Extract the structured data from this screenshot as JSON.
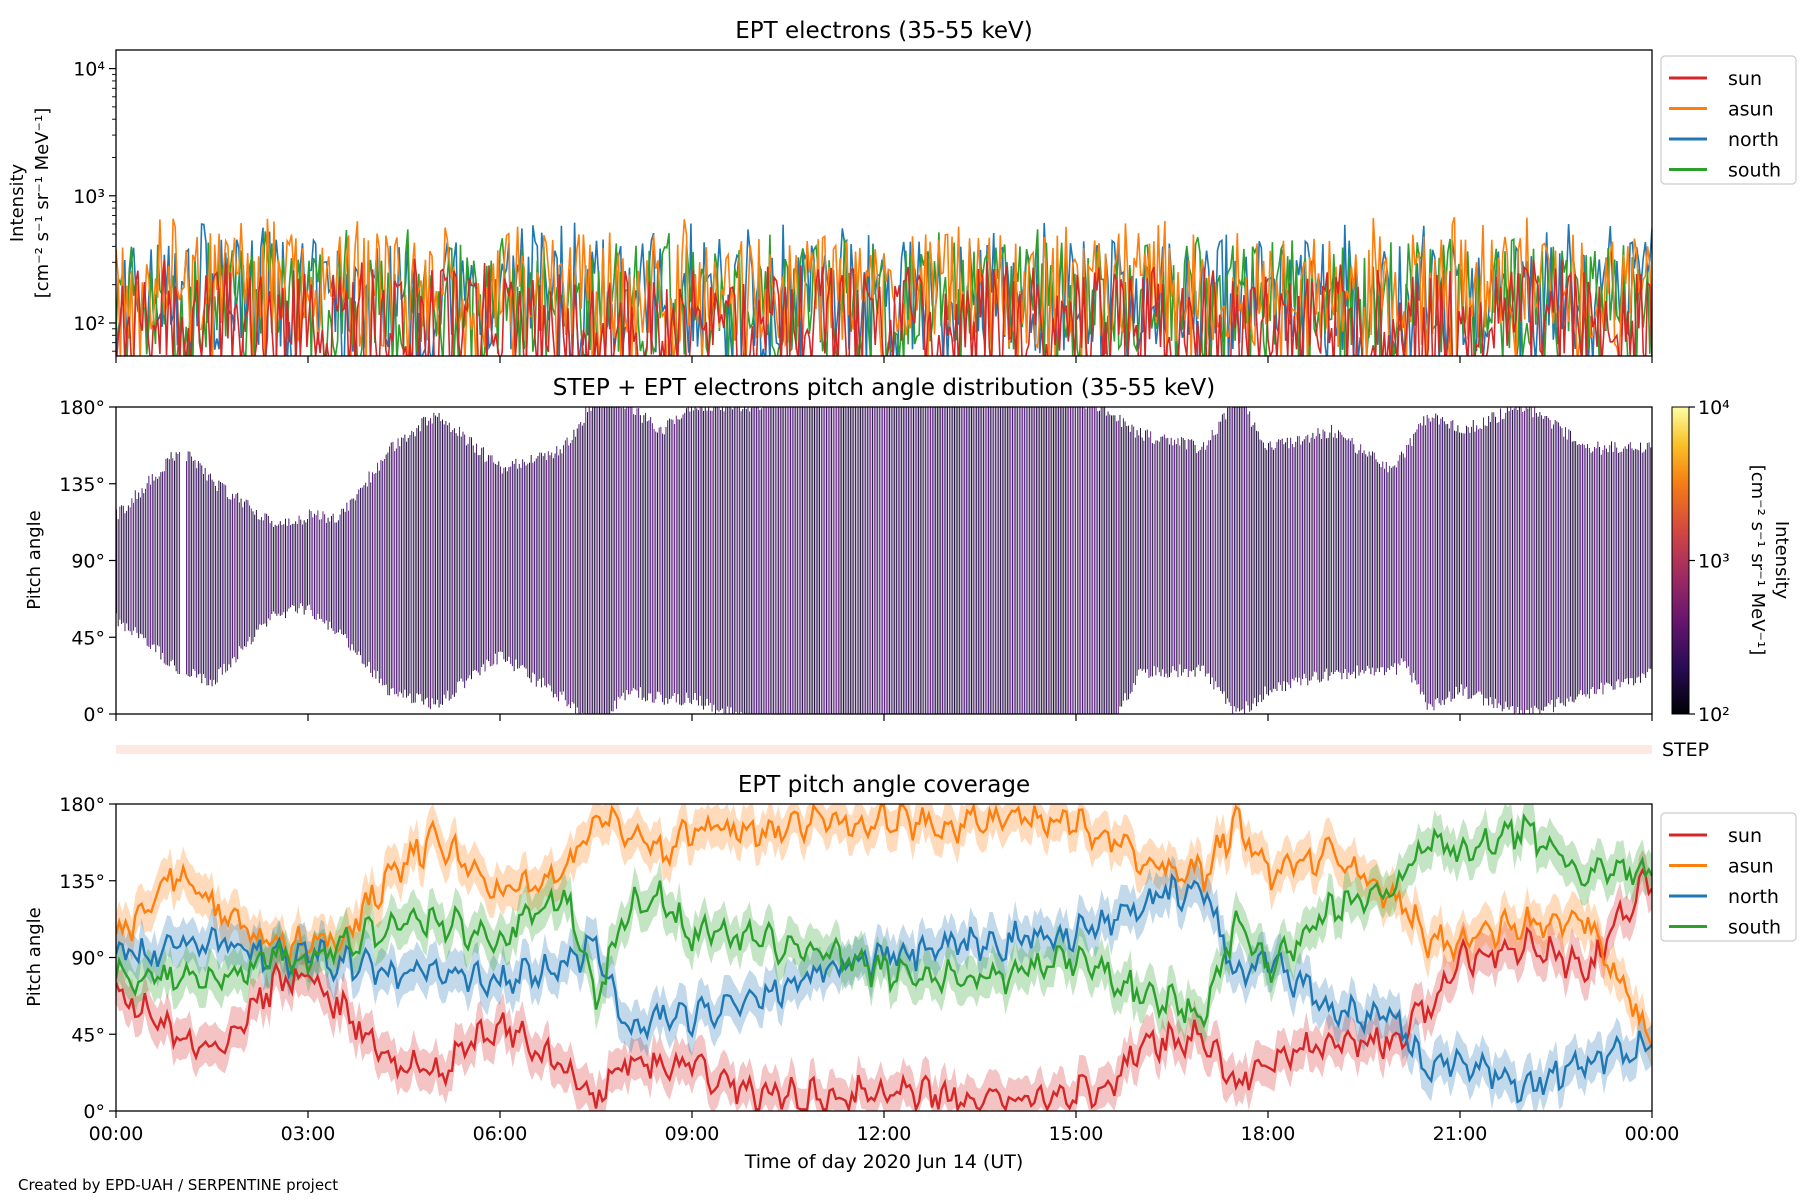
{
  "credit": "Created by EPD-UAH / SERPENTINE project",
  "colors": {
    "sun": "#d62728",
    "asun": "#ff7f0e",
    "north": "#1f77b4",
    "south": "#2ca02c",
    "step_bar": "#fde9e0",
    "pad_fill": "#3b0f6f"
  },
  "chart_data": [
    {
      "type": "line",
      "title": "EPT electrons (35-55 keV)",
      "ylabel": "Intensity",
      "ylabel_units": "[cm⁻² s⁻¹ sr⁻¹ MeV⁻¹]",
      "yscale": "log",
      "ylim": [
        55,
        14000
      ],
      "yticks": [
        {
          "value": 100,
          "label": "10²"
        },
        {
          "value": 1000,
          "label": "10³"
        },
        {
          "value": 10000,
          "label": "10⁴"
        }
      ],
      "x_hours": [
        0,
        24
      ],
      "legend": "top-right outside",
      "series": [
        {
          "name": "north",
          "baseline": 180,
          "spread": 250,
          "peak_max": 620
        },
        {
          "name": "south",
          "baseline": 170,
          "spread": 240,
          "peak_max": 560
        },
        {
          "name": "asun",
          "baseline": 200,
          "spread": 260,
          "peak_max": 680
        },
        {
          "name": "sun",
          "baseline": 110,
          "spread": 160,
          "peak_max": 320
        }
      ]
    },
    {
      "type": "heatmap",
      "title": "STEP + EPT electrons pitch angle distribution (35-55 keV)",
      "ylabel": "Pitch angle",
      "ylim": [
        0,
        180
      ],
      "yticks": [
        "0°",
        "45°",
        "90°",
        "135°",
        "180°"
      ],
      "colorbar": {
        "label": "Intensity",
        "units": "[cm⁻² s⁻¹ sr⁻¹ MeV⁻¹]",
        "scale": "log",
        "range": [
          100,
          10000
        ],
        "ticks": [
          "10²",
          "10³",
          "10⁴"
        ]
      },
      "step_label": "STEP"
    },
    {
      "type": "line",
      "title": "EPT pitch angle coverage",
      "ylabel": "Pitch angle",
      "ylim": [
        0,
        180
      ],
      "yticks": [
        "0°",
        "45°",
        "90°",
        "135°",
        "180°"
      ],
      "xlabel": "Time of day 2020 Jun 14 (UT)",
      "xticks": [
        "00:00",
        "03:00",
        "06:00",
        "09:00",
        "12:00",
        "15:00",
        "18:00",
        "21:00",
        "00:00"
      ],
      "legend": "top-right outside",
      "band_halfwidth_deg": 12,
      "x_hours": [
        0,
        1,
        1.5,
        2.5,
        3,
        3.5,
        4.3,
        5,
        6,
        7,
        7.5,
        8,
        8.5,
        9,
        10,
        11,
        12,
        13,
        14,
        15,
        15.5,
        16,
        17,
        17.5,
        18,
        19,
        20,
        20.5,
        21,
        22,
        23,
        24
      ],
      "series": [
        {
          "name": "sun",
          "values": [
            72,
            42,
            35,
            75,
            78,
            62,
            28,
            22,
            50,
            25,
            8,
            30,
            25,
            25,
            10,
            8,
            10,
            8,
            5,
            12,
            8,
            40,
            42,
            15,
            30,
            40,
            42,
            60,
            90,
            98,
            82,
            140
          ]
        },
        {
          "name": "asun",
          "values": [
            100,
            140,
            120,
            95,
            100,
            100,
            140,
            160,
            128,
            140,
            170,
            165,
            150,
            165,
            165,
            170,
            170,
            168,
            170,
            170,
            160,
            148,
            140,
            170,
            140,
            150,
            125,
            100,
            100,
            110,
            110,
            40
          ]
        },
        {
          "name": "north",
          "values": [
            90,
            98,
            100,
            90,
            92,
            88,
            80,
            82,
            75,
            85,
            100,
            45,
            55,
            55,
            68,
            80,
            90,
            95,
            100,
            105,
            110,
            122,
            130,
            80,
            90,
            60,
            55,
            20,
            30,
            15,
            28,
            40
          ]
        },
        {
          "name": "south",
          "values": [
            80,
            78,
            75,
            92,
            90,
            95,
            110,
            112,
            100,
            130,
            65,
            120,
            125,
            105,
            100,
            92,
            82,
            78,
            80,
            90,
            80,
            70,
            58,
            110,
            85,
            120,
            130,
            160,
            150,
            165,
            140,
            140
          ]
        }
      ]
    }
  ]
}
